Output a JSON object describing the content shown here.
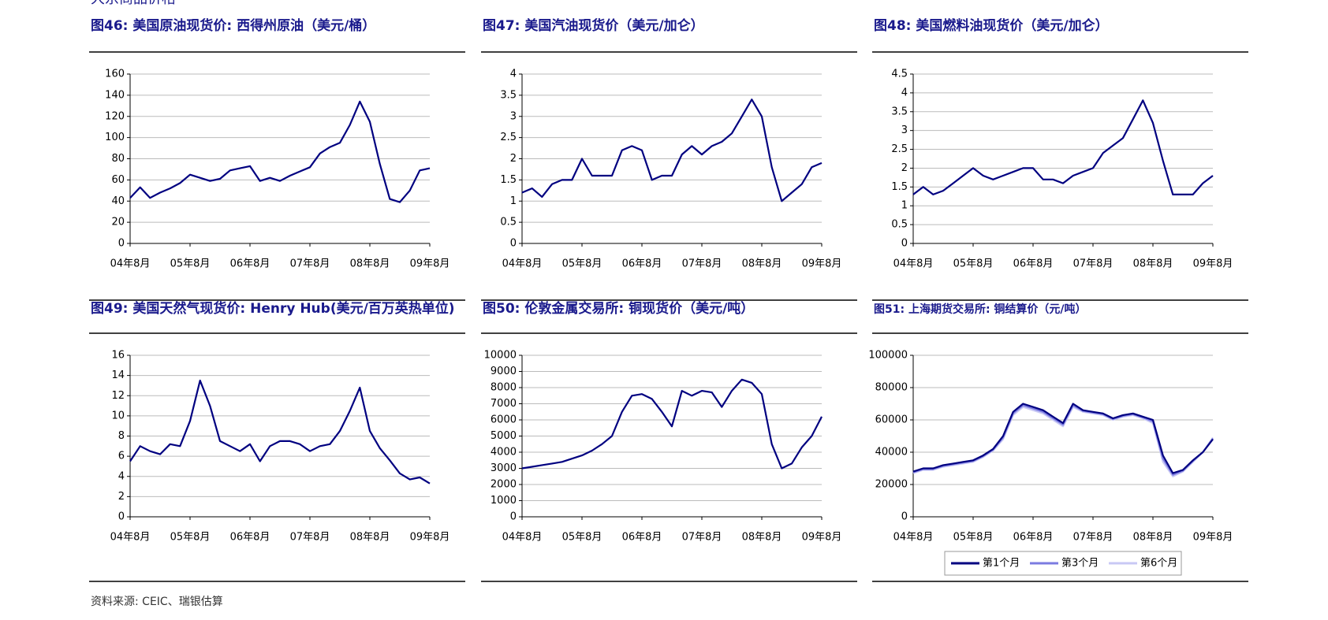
{
  "section_title": "大宗商品价格",
  "chart_data": [
    {
      "type": "line",
      "title": "图46: 美国原油现货价: 西得州原油（美元/桶）",
      "categories": [
        "04年8月",
        null,
        null,
        null,
        null,
        null,
        "05年8月",
        null,
        null,
        null,
        null,
        null,
        "06年8月",
        null,
        null,
        null,
        null,
        null,
        "07年8月",
        null,
        null,
        null,
        null,
        null,
        "08年8月",
        null,
        null,
        null,
        null,
        null,
        "09年8月"
      ],
      "values": [
        43,
        53,
        43,
        48,
        52,
        57,
        65,
        62,
        59,
        61,
        69,
        71,
        73,
        59,
        62,
        59,
        64,
        68,
        72,
        85,
        91,
        95,
        112,
        134,
        115,
        75,
        42,
        39,
        50,
        69,
        71
      ],
      "color": "#000080",
      "ylim": [
        0,
        160
      ],
      "yticks": [
        0,
        20,
        40,
        60,
        80,
        100,
        120,
        140,
        160
      ],
      "grid": true
    },
    {
      "type": "line",
      "title": "图47: 美国汽油现货价（美元/加仑）",
      "categories": [
        "04年8月",
        null,
        null,
        null,
        null,
        null,
        "05年8月",
        null,
        null,
        null,
        null,
        null,
        "06年8月",
        null,
        null,
        null,
        null,
        null,
        "07年8月",
        null,
        null,
        null,
        null,
        null,
        "08年8月",
        null,
        null,
        null,
        null,
        null,
        "09年8月"
      ],
      "values": [
        1.2,
        1.3,
        1.1,
        1.4,
        1.5,
        1.5,
        2.0,
        1.6,
        1.6,
        1.6,
        2.2,
        2.3,
        2.2,
        1.5,
        1.6,
        1.6,
        2.1,
        2.3,
        2.1,
        2.3,
        2.4,
        2.6,
        3.0,
        3.4,
        3.0,
        1.8,
        1.0,
        1.2,
        1.4,
        1.8,
        1.9
      ],
      "color": "#000080",
      "ylim": [
        0,
        4
      ],
      "yticks": [
        0,
        0.5,
        1,
        1.5,
        2,
        2.5,
        3,
        3.5,
        4
      ],
      "grid": true
    },
    {
      "type": "line",
      "title": "图48: 美国燃料油现货价（美元/加仑）",
      "categories": [
        "04年8月",
        null,
        null,
        null,
        null,
        null,
        "05年8月",
        null,
        null,
        null,
        null,
        null,
        "06年8月",
        null,
        null,
        null,
        null,
        null,
        "07年8月",
        null,
        null,
        null,
        null,
        null,
        "08年8月",
        null,
        null,
        null,
        null,
        null,
        "09年8月"
      ],
      "values": [
        1.3,
        1.5,
        1.3,
        1.4,
        1.6,
        1.8,
        2.0,
        1.8,
        1.7,
        1.8,
        1.9,
        2.0,
        2.0,
        1.7,
        1.7,
        1.6,
        1.8,
        1.9,
        2.0,
        2.4,
        2.6,
        2.8,
        3.3,
        3.8,
        3.2,
        2.2,
        1.3,
        1.3,
        1.3,
        1.6,
        1.8
      ],
      "color": "#000080",
      "ylim": [
        0,
        4.5
      ],
      "yticks": [
        0,
        0.5,
        1,
        1.5,
        2,
        2.5,
        3,
        3.5,
        4,
        4.5
      ],
      "grid": true
    },
    {
      "type": "line",
      "title": "图49: 美国天然气现货价: Henry Hub(美元/百万英热单位)",
      "categories": [
        "04年8月",
        null,
        null,
        null,
        null,
        null,
        "05年8月",
        null,
        null,
        null,
        null,
        null,
        "06年8月",
        null,
        null,
        null,
        null,
        null,
        "07年8月",
        null,
        null,
        null,
        null,
        null,
        "08年8月",
        null,
        null,
        null,
        null,
        null,
        "09年8月"
      ],
      "values": [
        5.5,
        7.0,
        6.5,
        6.2,
        7.2,
        7.0,
        9.5,
        13.5,
        11.0,
        7.5,
        7.0,
        6.5,
        7.2,
        5.5,
        7.0,
        7.5,
        7.5,
        7.2,
        6.5,
        7.0,
        7.2,
        8.5,
        10.5,
        12.8,
        8.5,
        6.8,
        5.6,
        4.3,
        3.7,
        3.9,
        3.3
      ],
      "color": "#000080",
      "ylim": [
        0,
        16
      ],
      "yticks": [
        0,
        2,
        4,
        6,
        8,
        10,
        12,
        14,
        16
      ],
      "grid": true
    },
    {
      "type": "line",
      "title": "图50: 伦敦金属交易所: 铜现货价（美元/吨）",
      "categories": [
        "04年8月",
        null,
        null,
        null,
        null,
        null,
        "05年8月",
        null,
        null,
        null,
        null,
        null,
        "06年8月",
        null,
        null,
        null,
        null,
        null,
        "07年8月",
        null,
        null,
        null,
        null,
        null,
        "08年8月",
        null,
        null,
        null,
        null,
        null,
        "09年8月"
      ],
      "values": [
        3000,
        3100,
        3200,
        3300,
        3400,
        3600,
        3800,
        4100,
        4500,
        5000,
        6500,
        7500,
        7600,
        7300,
        6500,
        5600,
        7800,
        7500,
        7800,
        7700,
        6800,
        7800,
        8500,
        8300,
        7600,
        4500,
        3000,
        3300,
        4300,
        5000,
        6200
      ],
      "color": "#000080",
      "ylim": [
        0,
        10000
      ],
      "yticks": [
        0,
        1000,
        2000,
        3000,
        4000,
        5000,
        6000,
        7000,
        8000,
        9000,
        10000
      ],
      "grid": true
    },
    {
      "type": "line",
      "title": "图51: 上海期货交易所: 铜结算价（元/吨）",
      "categories": [
        "04年8月",
        null,
        null,
        null,
        null,
        null,
        "05年8月",
        null,
        null,
        null,
        null,
        null,
        "06年8月",
        null,
        null,
        null,
        null,
        null,
        "07年8月",
        null,
        null,
        null,
        null,
        null,
        "08年8月",
        null,
        null,
        null,
        null,
        null,
        "09年8月"
      ],
      "series": [
        {
          "name": "第1个月",
          "color": "#000080",
          "values": [
            28000,
            30000,
            30000,
            32000,
            33000,
            34000,
            35000,
            38000,
            42000,
            50000,
            65000,
            70000,
            68000,
            66000,
            62000,
            58000,
            70000,
            66000,
            65000,
            64000,
            61000,
            63000,
            64000,
            62000,
            60000,
            38000,
            27000,
            29000,
            35000,
            40000,
            48000
          ]
        },
        {
          "name": "第3个月",
          "color": "#7b7be0",
          "values": [
            27500,
            29500,
            29500,
            31500,
            32500,
            33500,
            34500,
            37500,
            41500,
            49000,
            64000,
            69000,
            67000,
            65000,
            61000,
            57000,
            69000,
            65500,
            64500,
            63500,
            60500,
            62500,
            63500,
            61500,
            59000,
            36000,
            26000,
            28500,
            34500,
            40000,
            48500
          ]
        },
        {
          "name": "第6个月",
          "color": "#c8c8f4",
          "values": [
            27000,
            29000,
            29000,
            31000,
            32000,
            33000,
            34000,
            37000,
            41000,
            48000,
            63000,
            68000,
            66000,
            64000,
            60000,
            56000,
            68000,
            65000,
            64000,
            63000,
            60000,
            62000,
            63000,
            61000,
            58000,
            34000,
            25000,
            28000,
            34000,
            40000,
            49000
          ]
        }
      ],
      "ylim": [
        0,
        100000
      ],
      "yticks": [
        0,
        20000,
        40000,
        60000,
        80000,
        100000
      ],
      "grid": true,
      "legend": "bottom"
    }
  ],
  "source": "资料来源: CEIC、瑞银估算"
}
